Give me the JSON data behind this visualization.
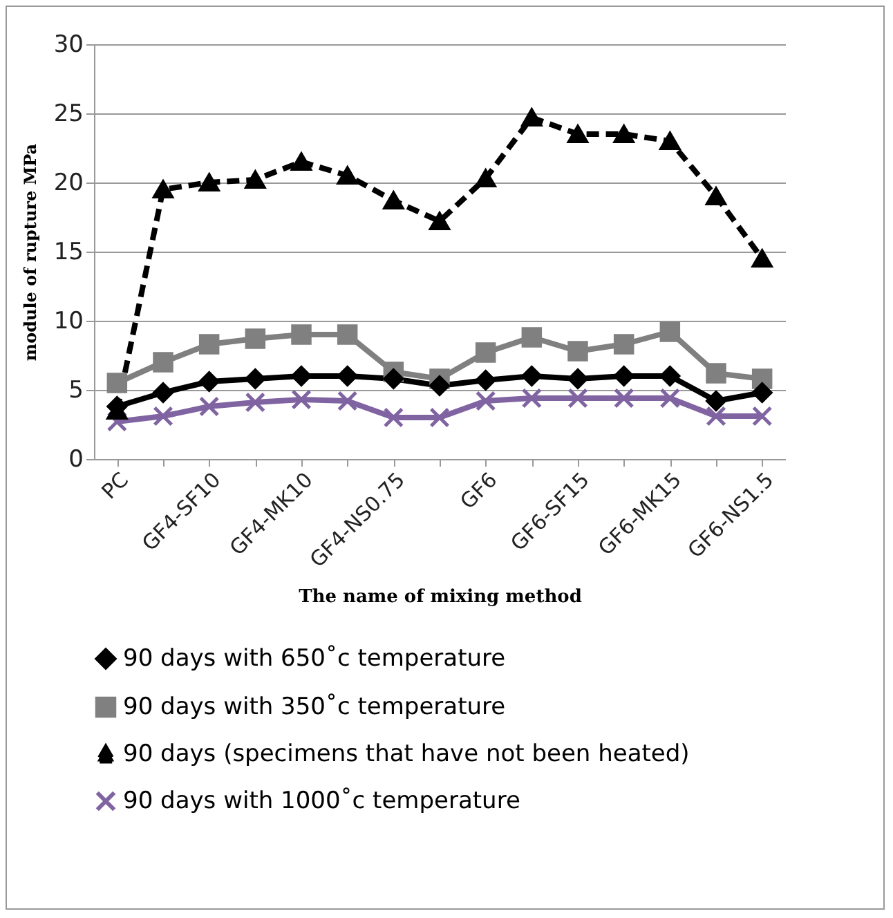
{
  "chart_data": {
    "type": "line",
    "xlabel": "The name of mixing method",
    "ylabel": "module of rupture MPa",
    "categories": [
      "PC",
      null,
      "GF4-SF10",
      null,
      "GF4-MK10",
      null,
      "GF4-NS0.75",
      null,
      "GF6",
      null,
      "GF6-SF15",
      null,
      "GF6-MK15",
      null,
      "GF6-NS1.5"
    ],
    "series": [
      {
        "name": "90 days with 650˚c temperature",
        "color": "#000000",
        "marker": "diamond",
        "line_style": "solid",
        "values": [
          3.8,
          4.8,
          5.6,
          5.8,
          6,
          6,
          5.8,
          5.3,
          5.7,
          6,
          5.8,
          6,
          6,
          4.2,
          4.8
        ]
      },
      {
        "name": "90 days with 350˚c temperature",
        "color": "#808080",
        "marker": "square",
        "line_style": "solid",
        "values": [
          5.5,
          7,
          8.3,
          8.7,
          9,
          9,
          6.3,
          5.8,
          7.7,
          8.8,
          7.8,
          8.3,
          9.2,
          6.2,
          5.8
        ]
      },
      {
        "name": "90 days (specimens that have not been heated)",
        "color": "#000000",
        "marker": "triangle",
        "line_style": "dashed",
        "values": [
          3.5,
          19.5,
          20,
          20.2,
          21.5,
          20.5,
          18.7,
          17.2,
          20.3,
          24.7,
          23.5,
          23.5,
          23,
          19,
          14.5
        ]
      },
      {
        "name": "90 days with 1000˚c temperature",
        "color": "#8064a2",
        "marker": "cross",
        "line_style": "solid",
        "values": [
          2.7,
          3.1,
          3.8,
          4.1,
          4.3,
          4.2,
          3,
          3,
          4.2,
          4.4,
          4.4,
          4.4,
          4.4,
          3.1,
          3.1
        ]
      }
    ],
    "ylim": [
      0,
      30
    ],
    "yticks": [
      0,
      5,
      10,
      15,
      20,
      25,
      30
    ],
    "grid": "y",
    "legend": "bottom"
  }
}
